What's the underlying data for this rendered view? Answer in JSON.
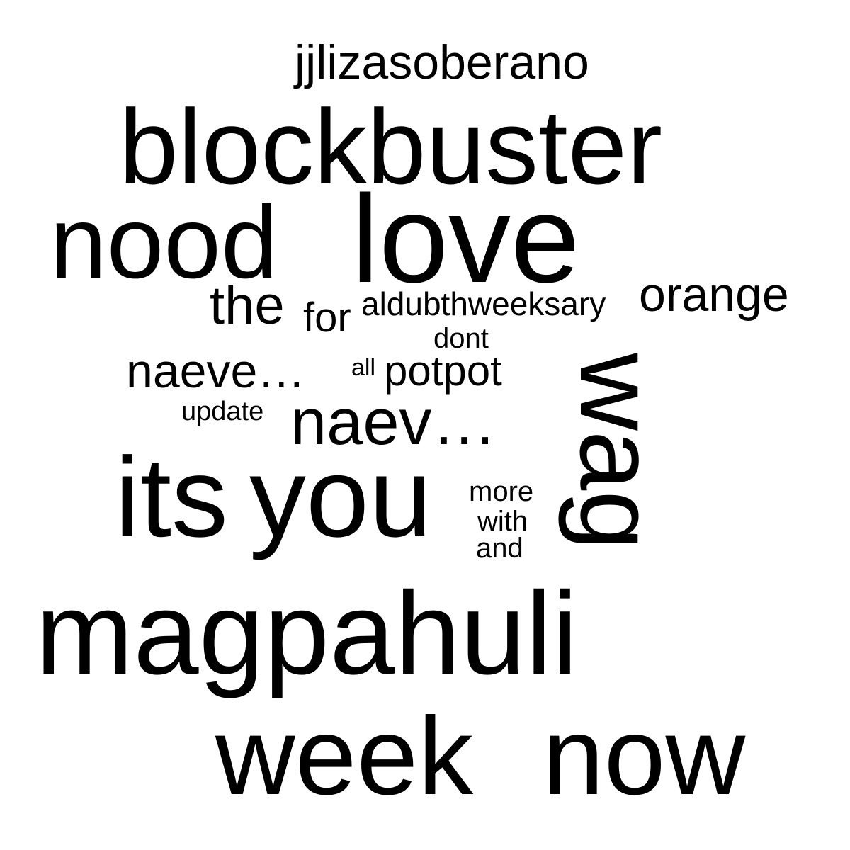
{
  "word_cloud": {
    "text_color": "#000000",
    "background_color": "#ffffff",
    "words": [
      {
        "id": "jjlizasoberano",
        "text": "jjlizasoberano"
      },
      {
        "id": "blockbuster",
        "text": "blockbuster"
      },
      {
        "id": "nood",
        "text": "nood"
      },
      {
        "id": "love",
        "text": "love"
      },
      {
        "id": "orange",
        "text": "orange"
      },
      {
        "id": "the",
        "text": "the"
      },
      {
        "id": "for",
        "text": "for"
      },
      {
        "id": "aldubthweeksary",
        "text": "aldubthweeksary"
      },
      {
        "id": "dont",
        "text": "dont"
      },
      {
        "id": "naeve",
        "text": "naeve…"
      },
      {
        "id": "all",
        "text": "all"
      },
      {
        "id": "potpot",
        "text": "potpot"
      },
      {
        "id": "update",
        "text": "update"
      },
      {
        "id": "naev",
        "text": "naev…"
      },
      {
        "id": "wag",
        "text": "wag",
        "orientation": "vertical"
      },
      {
        "id": "its",
        "text": "its"
      },
      {
        "id": "you",
        "text": "you"
      },
      {
        "id": "more",
        "text": "more"
      },
      {
        "id": "with",
        "text": "with"
      },
      {
        "id": "and",
        "text": "and"
      },
      {
        "id": "magpahuli",
        "text": "magpahuli"
      },
      {
        "id": "week",
        "text": "week"
      },
      {
        "id": "now",
        "text": "now"
      }
    ]
  }
}
